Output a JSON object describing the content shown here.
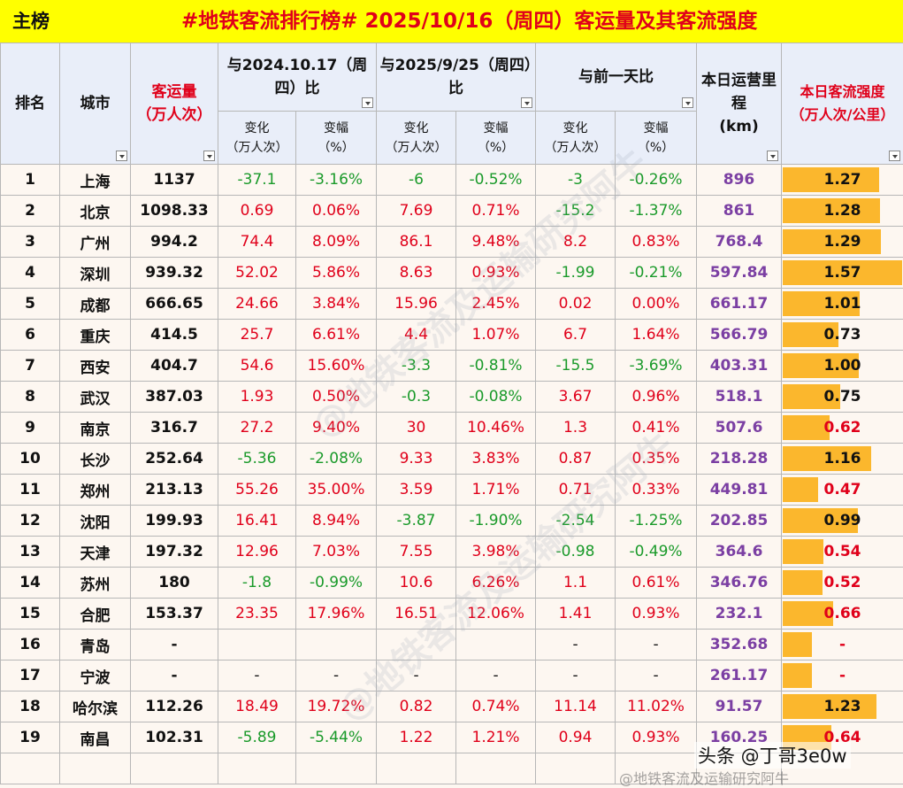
{
  "header": {
    "left": "主榜",
    "title": "#地铁客流排行榜# 2025/10/16（周四）客运量及其客流强度"
  },
  "columns": {
    "rank": "排名",
    "city": "城市",
    "volume": "客运量",
    "volume_unit": "（万人次）",
    "cmp1": "与2024.10.17（周四）比",
    "cmp2": "与2025/9/25（周四）比",
    "cmp3": "与前一天比",
    "change": "变化",
    "change_unit": "（万人次）",
    "rate": "变幅",
    "rate_unit": "（%）",
    "km": "本日运营里程",
    "km_unit": "(km)",
    "intensity": "本日客流强度",
    "intensity_unit": "（万人次/公里）"
  },
  "rows": [
    {
      "rank": "1",
      "city": "上海",
      "vol": "1137",
      "c1": "-37.1",
      "r1": "-3.16%",
      "c2": "-6",
      "r2": "-0.52%",
      "c3": "-3",
      "r3": "-0.26%",
      "km": "896",
      "int": "1.27",
      "bar": 1.27
    },
    {
      "rank": "2",
      "city": "北京",
      "vol": "1098.33",
      "c1": "0.69",
      "r1": "0.06%",
      "c2": "7.69",
      "r2": "0.71%",
      "c3": "-15.2",
      "r3": "-1.37%",
      "km": "861",
      "int": "1.28",
      "bar": 1.28
    },
    {
      "rank": "3",
      "city": "广州",
      "vol": "994.2",
      "c1": "74.4",
      "r1": "8.09%",
      "c2": "86.1",
      "r2": "9.48%",
      "c3": "8.2",
      "r3": "0.83%",
      "km": "768.4",
      "int": "1.29",
      "bar": 1.29
    },
    {
      "rank": "4",
      "city": "深圳",
      "vol": "939.32",
      "c1": "52.02",
      "r1": "5.86%",
      "c2": "8.63",
      "r2": "0.93%",
      "c3": "-1.99",
      "r3": "-0.21%",
      "km": "597.84",
      "int": "1.57",
      "bar": 1.57
    },
    {
      "rank": "5",
      "city": "成都",
      "vol": "666.65",
      "c1": "24.66",
      "r1": "3.84%",
      "c2": "15.96",
      "r2": "2.45%",
      "c3": "0.02",
      "r3": "0.00%",
      "km": "661.17",
      "int": "1.01",
      "bar": 1.01
    },
    {
      "rank": "6",
      "city": "重庆",
      "vol": "414.5",
      "c1": "25.7",
      "r1": "6.61%",
      "c2": "4.4",
      "r2": "1.07%",
      "c3": "6.7",
      "r3": "1.64%",
      "km": "566.79",
      "int": "0.73",
      "bar": 0.73
    },
    {
      "rank": "7",
      "city": "西安",
      "vol": "404.7",
      "c1": "54.6",
      "r1": "15.60%",
      "c2": "-3.3",
      "r2": "-0.81%",
      "c3": "-15.5",
      "r3": "-3.69%",
      "km": "403.31",
      "int": "1.00",
      "bar": 1.0
    },
    {
      "rank": "8",
      "city": "武汉",
      "vol": "387.03",
      "c1": "1.93",
      "r1": "0.50%",
      "c2": "-0.3",
      "r2": "-0.08%",
      "c3": "3.67",
      "r3": "0.96%",
      "km": "518.1",
      "int": "0.75",
      "bar": 0.75
    },
    {
      "rank": "9",
      "city": "南京",
      "vol": "316.7",
      "c1": "27.2",
      "r1": "9.40%",
      "c2": "30",
      "r2": "10.46%",
      "c3": "1.3",
      "r3": "0.41%",
      "km": "507.6",
      "int": "0.62",
      "bar": 0.62
    },
    {
      "rank": "10",
      "city": "长沙",
      "vol": "252.64",
      "c1": "-5.36",
      "r1": "-2.08%",
      "c2": "9.33",
      "r2": "3.83%",
      "c3": "0.87",
      "r3": "0.35%",
      "km": "218.28",
      "int": "1.16",
      "bar": 1.16
    },
    {
      "rank": "11",
      "city": "郑州",
      "vol": "213.13",
      "c1": "55.26",
      "r1": "35.00%",
      "c2": "3.59",
      "r2": "1.71%",
      "c3": "0.71",
      "r3": "0.33%",
      "km": "449.81",
      "int": "0.47",
      "bar": 0.47
    },
    {
      "rank": "12",
      "city": "沈阳",
      "vol": "199.93",
      "c1": "16.41",
      "r1": "8.94%",
      "c2": "-3.87",
      "r2": "-1.90%",
      "c3": "-2.54",
      "r3": "-1.25%",
      "km": "202.85",
      "int": "0.99",
      "bar": 0.99
    },
    {
      "rank": "13",
      "city": "天津",
      "vol": "197.32",
      "c1": "12.96",
      "r1": "7.03%",
      "c2": "7.55",
      "r2": "3.98%",
      "c3": "-0.98",
      "r3": "-0.49%",
      "km": "364.6",
      "int": "0.54",
      "bar": 0.54
    },
    {
      "rank": "14",
      "city": "苏州",
      "vol": "180",
      "c1": "-1.8",
      "r1": "-0.99%",
      "c2": "10.6",
      "r2": "6.26%",
      "c3": "1.1",
      "r3": "0.61%",
      "km": "346.76",
      "int": "0.52",
      "bar": 0.52
    },
    {
      "rank": "15",
      "city": "合肥",
      "vol": "153.37",
      "c1": "23.35",
      "r1": "17.96%",
      "c2": "16.51",
      "r2": "12.06%",
      "c3": "1.41",
      "r3": "0.93%",
      "km": "232.1",
      "int": "0.66",
      "bar": 0.66
    },
    {
      "rank": "16",
      "city": "青岛",
      "vol": "-",
      "c1": "",
      "r1": "",
      "c2": "",
      "r2": "",
      "c3": "-",
      "r3": "-",
      "km": "352.68",
      "int": "-",
      "bar": 0.38
    },
    {
      "rank": "17",
      "city": "宁波",
      "vol": "-",
      "c1": "-",
      "r1": "-",
      "c2": "-",
      "r2": "-",
      "c3": "-",
      "r3": "-",
      "km": "261.17",
      "int": "-",
      "bar": 0.38
    },
    {
      "rank": "18",
      "city": "哈尔滨",
      "vol": "112.26",
      "c1": "18.49",
      "r1": "19.72%",
      "c2": "0.82",
      "r2": "0.74%",
      "c3": "11.14",
      "r3": "11.02%",
      "km": "91.57",
      "int": "1.23",
      "bar": 1.23
    },
    {
      "rank": "19",
      "city": "南昌",
      "vol": "102.31",
      "c1": "-5.89",
      "r1": "-5.44%",
      "c2": "1.22",
      "r2": "1.21%",
      "c3": "0.94",
      "r3": "0.93%",
      "km": "160.25",
      "int": "0.64",
      "bar": 0.64
    }
  ],
  "bar_max": 1.57,
  "colors": {
    "positive": "#e0001a",
    "negative": "#1a9a2a",
    "km": "#7b3fa3",
    "bar": "#fbb72d",
    "title_bg": "#ffff00"
  },
  "watermark": "@地铁客流及运输研究阿牛",
  "credit": "头条 @丁哥3e0w",
  "credit_sub": "@地铁客流及运输研究阿牛"
}
